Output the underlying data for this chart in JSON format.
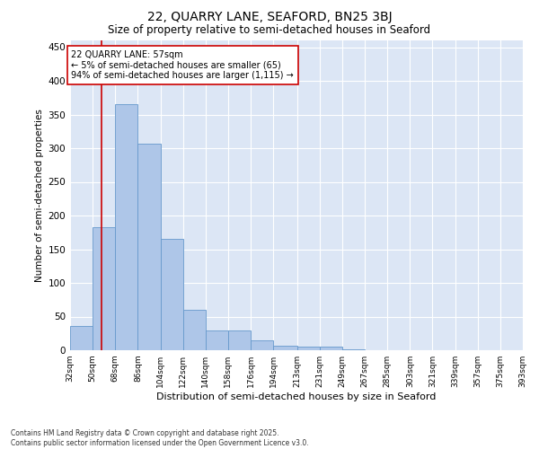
{
  "title": "22, QUARRY LANE, SEAFORD, BN25 3BJ",
  "subtitle": "Size of property relative to semi-detached houses in Seaford",
  "xlabel": "Distribution of semi-detached houses by size in Seaford",
  "ylabel": "Number of semi-detached properties",
  "footer_line1": "Contains HM Land Registry data © Crown copyright and database right 2025.",
  "footer_line2": "Contains public sector information licensed under the Open Government Licence v3.0.",
  "annotation_title": "22 QUARRY LANE: 57sqm",
  "annotation_line1": "← 5% of semi-detached houses are smaller (65)",
  "annotation_line2": "94% of semi-detached houses are larger (1,115) →",
  "marker_value": 57,
  "bar_edges": [
    32,
    50,
    68,
    86,
    104,
    122,
    140,
    158,
    176,
    194,
    213,
    231,
    249,
    267,
    285,
    303,
    321,
    339,
    357,
    375,
    393
  ],
  "bar_heights": [
    36,
    183,
    365,
    307,
    165,
    60,
    30,
    30,
    15,
    7,
    6,
    6,
    1,
    0,
    0,
    0,
    0,
    0,
    0,
    0
  ],
  "bar_color": "#aec6e8",
  "bar_edge_color": "#6699cc",
  "marker_color": "#cc0000",
  "plot_background": "#dce6f5",
  "ylim": [
    0,
    460
  ],
  "yticks": [
    0,
    50,
    100,
    150,
    200,
    250,
    300,
    350,
    400,
    450
  ],
  "title_fontsize": 10,
  "subtitle_fontsize": 8.5,
  "ylabel_fontsize": 7.5,
  "xlabel_fontsize": 8,
  "ytick_fontsize": 7.5,
  "xtick_fontsize": 6.5,
  "annotation_fontsize": 7,
  "footer_fontsize": 5.5
}
